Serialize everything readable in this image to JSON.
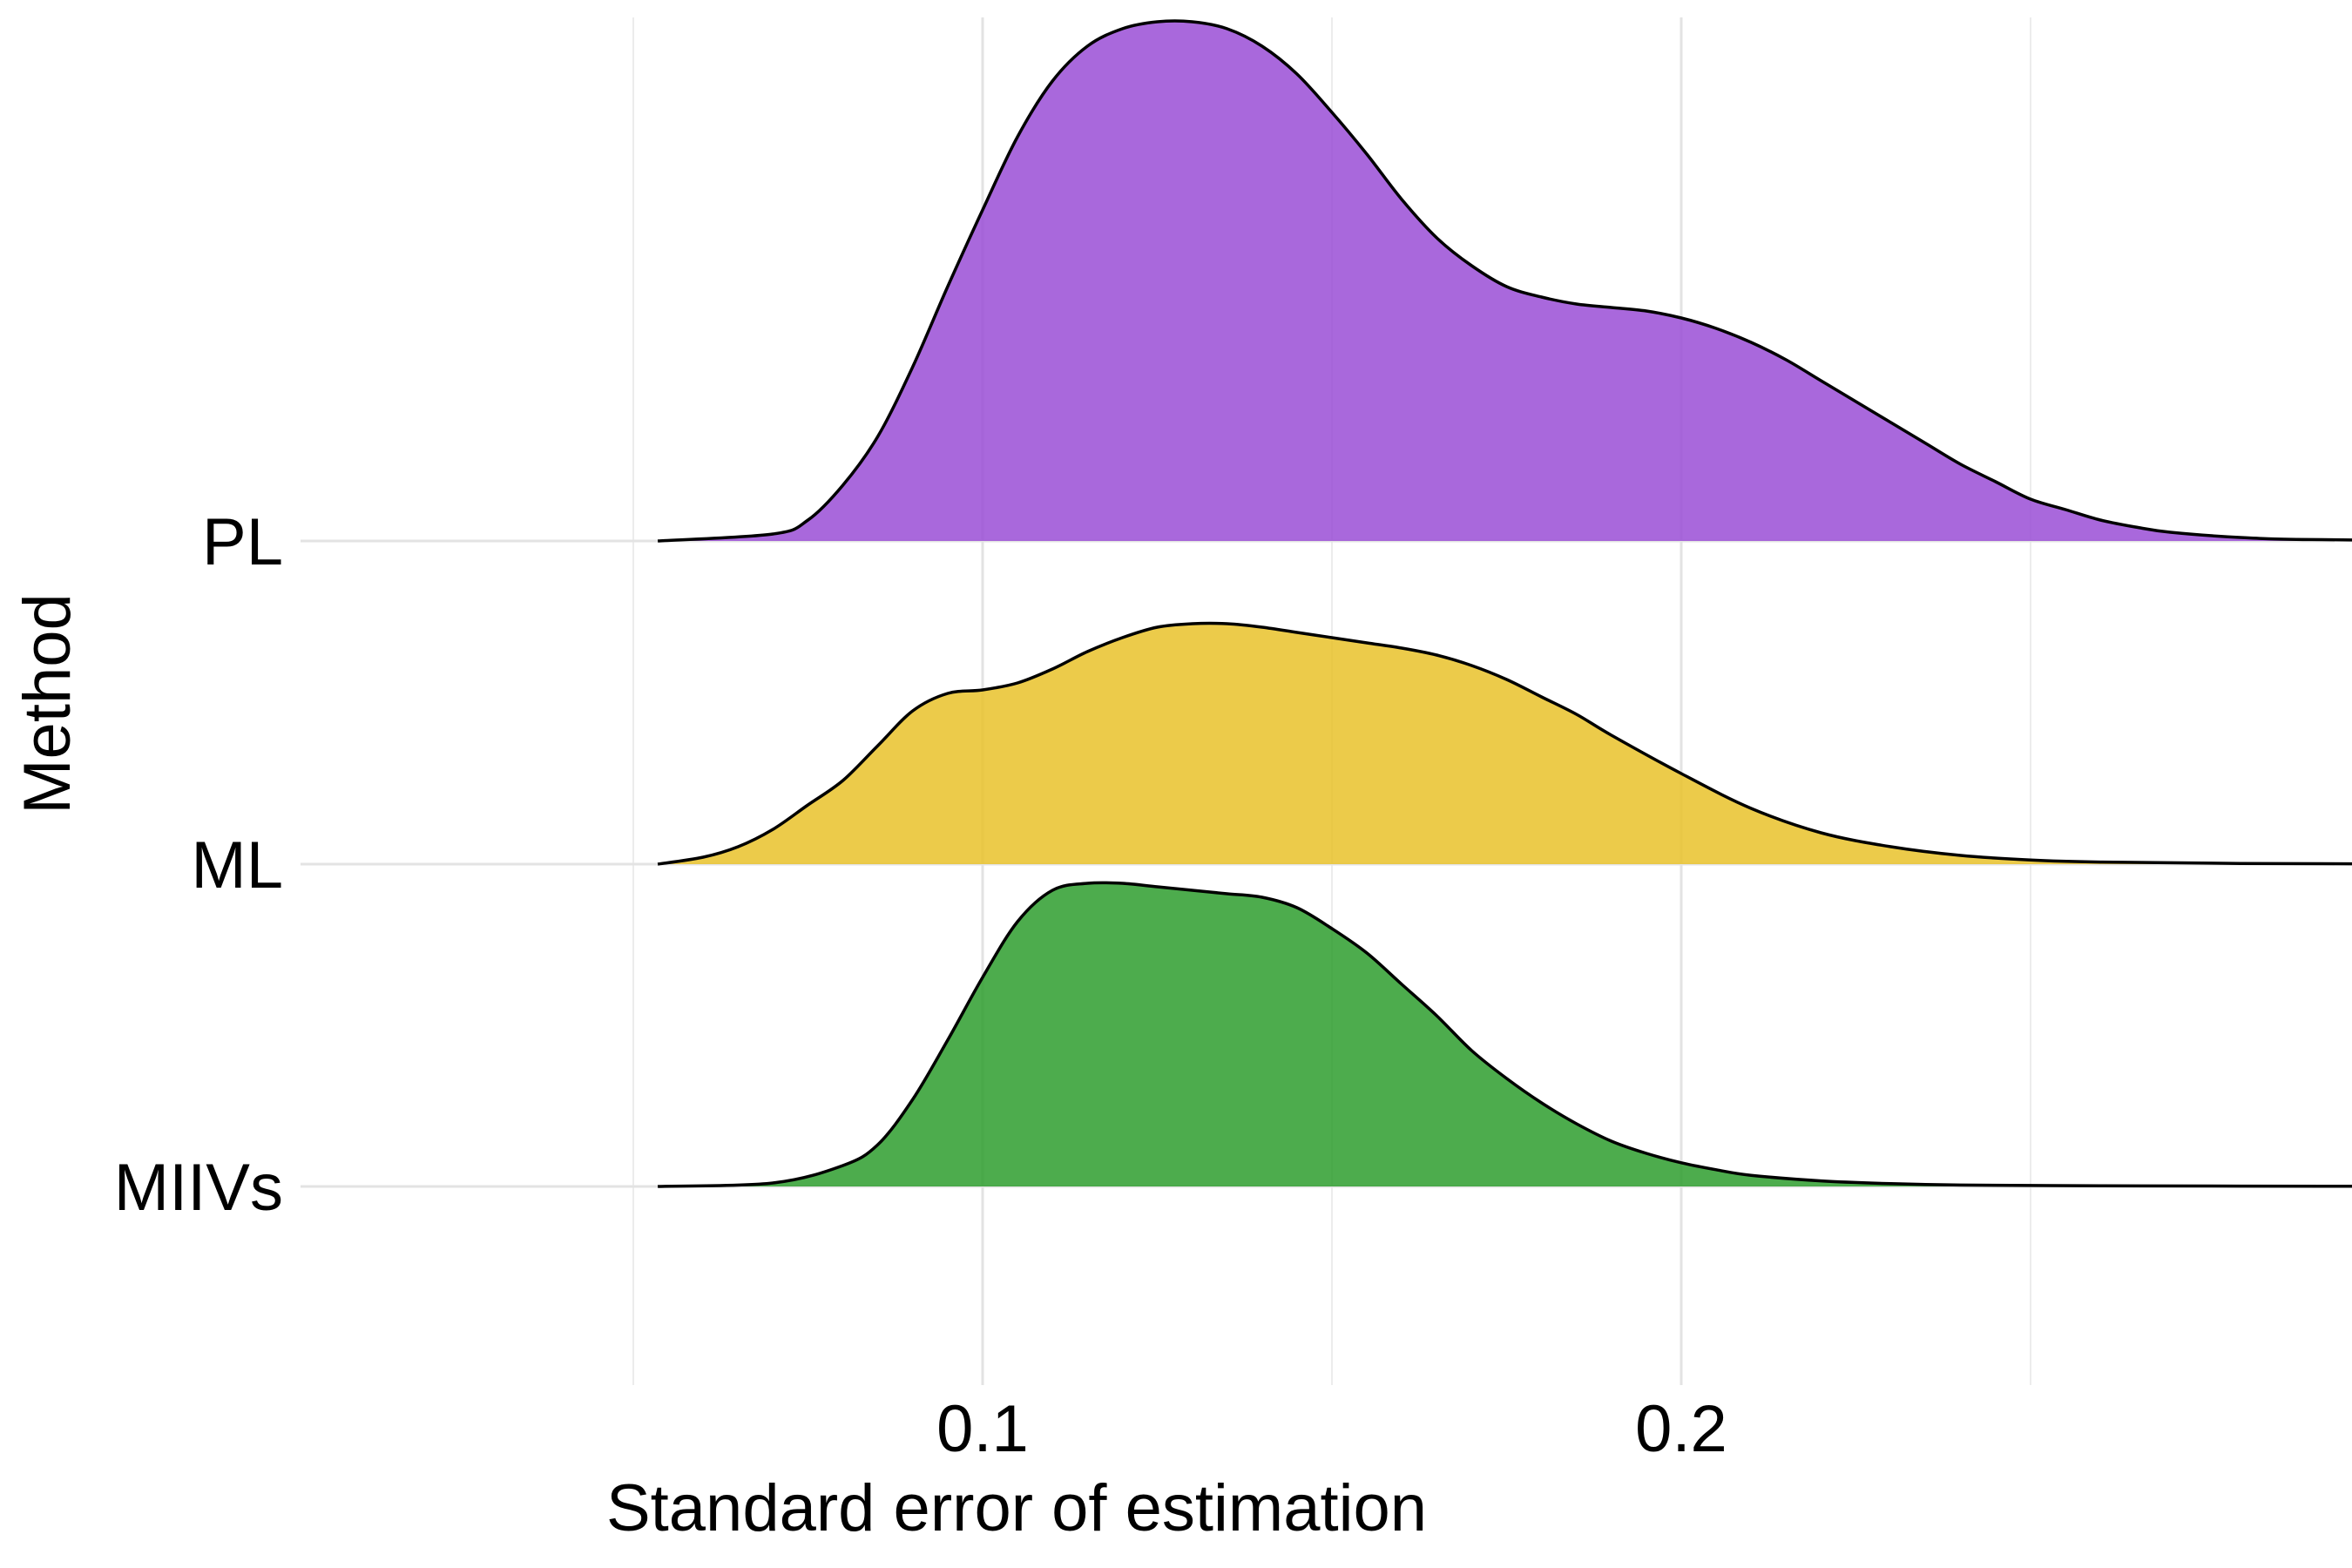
{
  "chart_data": {
    "type": "ridgeline",
    "title": "",
    "xlabel": "Standard error of estimation",
    "ylabel": "Method",
    "xlim": [
      0.0535,
      0.3155
    ],
    "x_ticks_major": [
      0.1,
      0.2
    ],
    "x_tick_labels": [
      "0.1",
      "0.2"
    ],
    "x_ticks_minor": [
      0.05,
      0.15,
      0.25
    ],
    "grid": true,
    "legend": "none",
    "categories": [
      "MIIVs",
      "ML",
      "PL"
    ],
    "series": [
      {
        "name": "MIIVs",
        "color": "#2e9e2e",
        "density": [
          [
            0.0535,
            0.0
          ],
          [
            0.07,
            0.01
          ],
          [
            0.08,
            0.06
          ],
          [
            0.085,
            0.12
          ],
          [
            0.09,
            0.25
          ],
          [
            0.095,
            0.42
          ],
          [
            0.1,
            0.6
          ],
          [
            0.105,
            0.76
          ],
          [
            0.11,
            0.85
          ],
          [
            0.115,
            0.87
          ],
          [
            0.12,
            0.87
          ],
          [
            0.125,
            0.86
          ],
          [
            0.13,
            0.85
          ],
          [
            0.135,
            0.84
          ],
          [
            0.14,
            0.83
          ],
          [
            0.145,
            0.8
          ],
          [
            0.15,
            0.74
          ],
          [
            0.155,
            0.67
          ],
          [
            0.16,
            0.58
          ],
          [
            0.165,
            0.49
          ],
          [
            0.17,
            0.39
          ],
          [
            0.175,
            0.31
          ],
          [
            0.18,
            0.24
          ],
          [
            0.185,
            0.18
          ],
          [
            0.19,
            0.13
          ],
          [
            0.195,
            0.095
          ],
          [
            0.2,
            0.068
          ],
          [
            0.205,
            0.048
          ],
          [
            0.21,
            0.032
          ],
          [
            0.22,
            0.016
          ],
          [
            0.23,
            0.008
          ],
          [
            0.24,
            0.004
          ],
          [
            0.26,
            0.002
          ],
          [
            0.28,
            0.001
          ],
          [
            0.3155,
            0.0
          ]
        ]
      },
      {
        "name": "ML",
        "color": "#e9c22a",
        "density": [
          [
            0.0535,
            0.0
          ],
          [
            0.06,
            0.02
          ],
          [
            0.065,
            0.05
          ],
          [
            0.07,
            0.1
          ],
          [
            0.075,
            0.17
          ],
          [
            0.08,
            0.24
          ],
          [
            0.085,
            0.34
          ],
          [
            0.09,
            0.44
          ],
          [
            0.095,
            0.49
          ],
          [
            0.1,
            0.5
          ],
          [
            0.105,
            0.52
          ],
          [
            0.11,
            0.56
          ],
          [
            0.115,
            0.61
          ],
          [
            0.12,
            0.65
          ],
          [
            0.125,
            0.68
          ],
          [
            0.13,
            0.69
          ],
          [
            0.135,
            0.69
          ],
          [
            0.14,
            0.68
          ],
          [
            0.145,
            0.665
          ],
          [
            0.15,
            0.65
          ],
          [
            0.155,
            0.635
          ],
          [
            0.16,
            0.62
          ],
          [
            0.165,
            0.6
          ],
          [
            0.17,
            0.57
          ],
          [
            0.175,
            0.53
          ],
          [
            0.18,
            0.48
          ],
          [
            0.185,
            0.43
          ],
          [
            0.19,
            0.37
          ],
          [
            0.2,
            0.26
          ],
          [
            0.21,
            0.16
          ],
          [
            0.22,
            0.09
          ],
          [
            0.23,
            0.05
          ],
          [
            0.24,
            0.025
          ],
          [
            0.25,
            0.012
          ],
          [
            0.26,
            0.006
          ],
          [
            0.28,
            0.002
          ],
          [
            0.3155,
            0.0
          ]
        ]
      },
      {
        "name": "PL",
        "color": "#9a4dd6",
        "density": [
          [
            0.0535,
            0.0
          ],
          [
            0.07,
            0.02
          ],
          [
            0.075,
            0.06
          ],
          [
            0.08,
            0.16
          ],
          [
            0.085,
            0.3
          ],
          [
            0.09,
            0.5
          ],
          [
            0.095,
            0.73
          ],
          [
            0.1,
            0.95
          ],
          [
            0.105,
            1.16
          ],
          [
            0.11,
            1.32
          ],
          [
            0.115,
            1.42
          ],
          [
            0.12,
            1.47
          ],
          [
            0.125,
            1.49
          ],
          [
            0.13,
            1.49
          ],
          [
            0.135,
            1.47
          ],
          [
            0.14,
            1.42
          ],
          [
            0.145,
            1.34
          ],
          [
            0.15,
            1.23
          ],
          [
            0.155,
            1.11
          ],
          [
            0.16,
            0.98
          ],
          [
            0.165,
            0.87
          ],
          [
            0.17,
            0.79
          ],
          [
            0.175,
            0.73
          ],
          [
            0.18,
            0.7
          ],
          [
            0.185,
            0.68
          ],
          [
            0.19,
            0.67
          ],
          [
            0.195,
            0.66
          ],
          [
            0.2,
            0.64
          ],
          [
            0.205,
            0.61
          ],
          [
            0.21,
            0.57
          ],
          [
            0.215,
            0.52
          ],
          [
            0.22,
            0.46
          ],
          [
            0.225,
            0.4
          ],
          [
            0.23,
            0.34
          ],
          [
            0.235,
            0.28
          ],
          [
            0.24,
            0.22
          ],
          [
            0.245,
            0.17
          ],
          [
            0.25,
            0.12
          ],
          [
            0.255,
            0.09
          ],
          [
            0.26,
            0.06
          ],
          [
            0.265,
            0.04
          ],
          [
            0.27,
            0.025
          ],
          [
            0.28,
            0.01
          ],
          [
            0.29,
            0.004
          ],
          [
            0.3155,
            0.0
          ]
        ]
      }
    ]
  }
}
